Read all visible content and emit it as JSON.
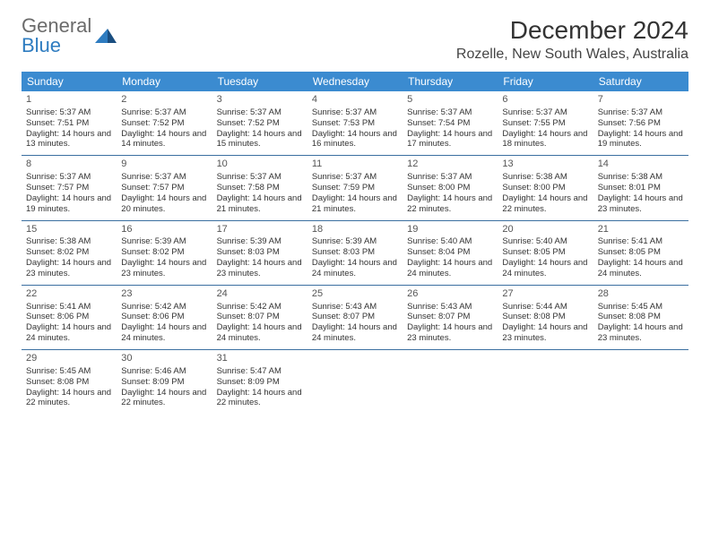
{
  "brand": {
    "part1": "General",
    "part2": "Blue"
  },
  "title": "December 2024",
  "location": "Rozelle, New South Wales, Australia",
  "colors": {
    "header_bg": "#3b8bd0",
    "header_text": "#ffffff",
    "border": "#3b6fa0",
    "brand_blue": "#2e7cc0",
    "brand_gray": "#6b6b6b",
    "text": "#333333",
    "background": "#ffffff"
  },
  "weekdays": [
    "Sunday",
    "Monday",
    "Tuesday",
    "Wednesday",
    "Thursday",
    "Friday",
    "Saturday"
  ],
  "weeks": [
    [
      {
        "day": "1",
        "sunrise": "5:37 AM",
        "sunset": "7:51 PM",
        "daylight": "14 hours and 13 minutes."
      },
      {
        "day": "2",
        "sunrise": "5:37 AM",
        "sunset": "7:52 PM",
        "daylight": "14 hours and 14 minutes."
      },
      {
        "day": "3",
        "sunrise": "5:37 AM",
        "sunset": "7:52 PM",
        "daylight": "14 hours and 15 minutes."
      },
      {
        "day": "4",
        "sunrise": "5:37 AM",
        "sunset": "7:53 PM",
        "daylight": "14 hours and 16 minutes."
      },
      {
        "day": "5",
        "sunrise": "5:37 AM",
        "sunset": "7:54 PM",
        "daylight": "14 hours and 17 minutes."
      },
      {
        "day": "6",
        "sunrise": "5:37 AM",
        "sunset": "7:55 PM",
        "daylight": "14 hours and 18 minutes."
      },
      {
        "day": "7",
        "sunrise": "5:37 AM",
        "sunset": "7:56 PM",
        "daylight": "14 hours and 19 minutes."
      }
    ],
    [
      {
        "day": "8",
        "sunrise": "5:37 AM",
        "sunset": "7:57 PM",
        "daylight": "14 hours and 19 minutes."
      },
      {
        "day": "9",
        "sunrise": "5:37 AM",
        "sunset": "7:57 PM",
        "daylight": "14 hours and 20 minutes."
      },
      {
        "day": "10",
        "sunrise": "5:37 AM",
        "sunset": "7:58 PM",
        "daylight": "14 hours and 21 minutes."
      },
      {
        "day": "11",
        "sunrise": "5:37 AM",
        "sunset": "7:59 PM",
        "daylight": "14 hours and 21 minutes."
      },
      {
        "day": "12",
        "sunrise": "5:37 AM",
        "sunset": "8:00 PM",
        "daylight": "14 hours and 22 minutes."
      },
      {
        "day": "13",
        "sunrise": "5:38 AM",
        "sunset": "8:00 PM",
        "daylight": "14 hours and 22 minutes."
      },
      {
        "day": "14",
        "sunrise": "5:38 AM",
        "sunset": "8:01 PM",
        "daylight": "14 hours and 23 minutes."
      }
    ],
    [
      {
        "day": "15",
        "sunrise": "5:38 AM",
        "sunset": "8:02 PM",
        "daylight": "14 hours and 23 minutes."
      },
      {
        "day": "16",
        "sunrise": "5:39 AM",
        "sunset": "8:02 PM",
        "daylight": "14 hours and 23 minutes."
      },
      {
        "day": "17",
        "sunrise": "5:39 AM",
        "sunset": "8:03 PM",
        "daylight": "14 hours and 23 minutes."
      },
      {
        "day": "18",
        "sunrise": "5:39 AM",
        "sunset": "8:03 PM",
        "daylight": "14 hours and 24 minutes."
      },
      {
        "day": "19",
        "sunrise": "5:40 AM",
        "sunset": "8:04 PM",
        "daylight": "14 hours and 24 minutes."
      },
      {
        "day": "20",
        "sunrise": "5:40 AM",
        "sunset": "8:05 PM",
        "daylight": "14 hours and 24 minutes."
      },
      {
        "day": "21",
        "sunrise": "5:41 AM",
        "sunset": "8:05 PM",
        "daylight": "14 hours and 24 minutes."
      }
    ],
    [
      {
        "day": "22",
        "sunrise": "5:41 AM",
        "sunset": "8:06 PM",
        "daylight": "14 hours and 24 minutes."
      },
      {
        "day": "23",
        "sunrise": "5:42 AM",
        "sunset": "8:06 PM",
        "daylight": "14 hours and 24 minutes."
      },
      {
        "day": "24",
        "sunrise": "5:42 AM",
        "sunset": "8:07 PM",
        "daylight": "14 hours and 24 minutes."
      },
      {
        "day": "25",
        "sunrise": "5:43 AM",
        "sunset": "8:07 PM",
        "daylight": "14 hours and 24 minutes."
      },
      {
        "day": "26",
        "sunrise": "5:43 AM",
        "sunset": "8:07 PM",
        "daylight": "14 hours and 23 minutes."
      },
      {
        "day": "27",
        "sunrise": "5:44 AM",
        "sunset": "8:08 PM",
        "daylight": "14 hours and 23 minutes."
      },
      {
        "day": "28",
        "sunrise": "5:45 AM",
        "sunset": "8:08 PM",
        "daylight": "14 hours and 23 minutes."
      }
    ],
    [
      {
        "day": "29",
        "sunrise": "5:45 AM",
        "sunset": "8:08 PM",
        "daylight": "14 hours and 22 minutes."
      },
      {
        "day": "30",
        "sunrise": "5:46 AM",
        "sunset": "8:09 PM",
        "daylight": "14 hours and 22 minutes."
      },
      {
        "day": "31",
        "sunrise": "5:47 AM",
        "sunset": "8:09 PM",
        "daylight": "14 hours and 22 minutes."
      },
      null,
      null,
      null,
      null
    ]
  ],
  "labels": {
    "sunrise": "Sunrise:",
    "sunset": "Sunset:",
    "daylight": "Daylight:"
  }
}
